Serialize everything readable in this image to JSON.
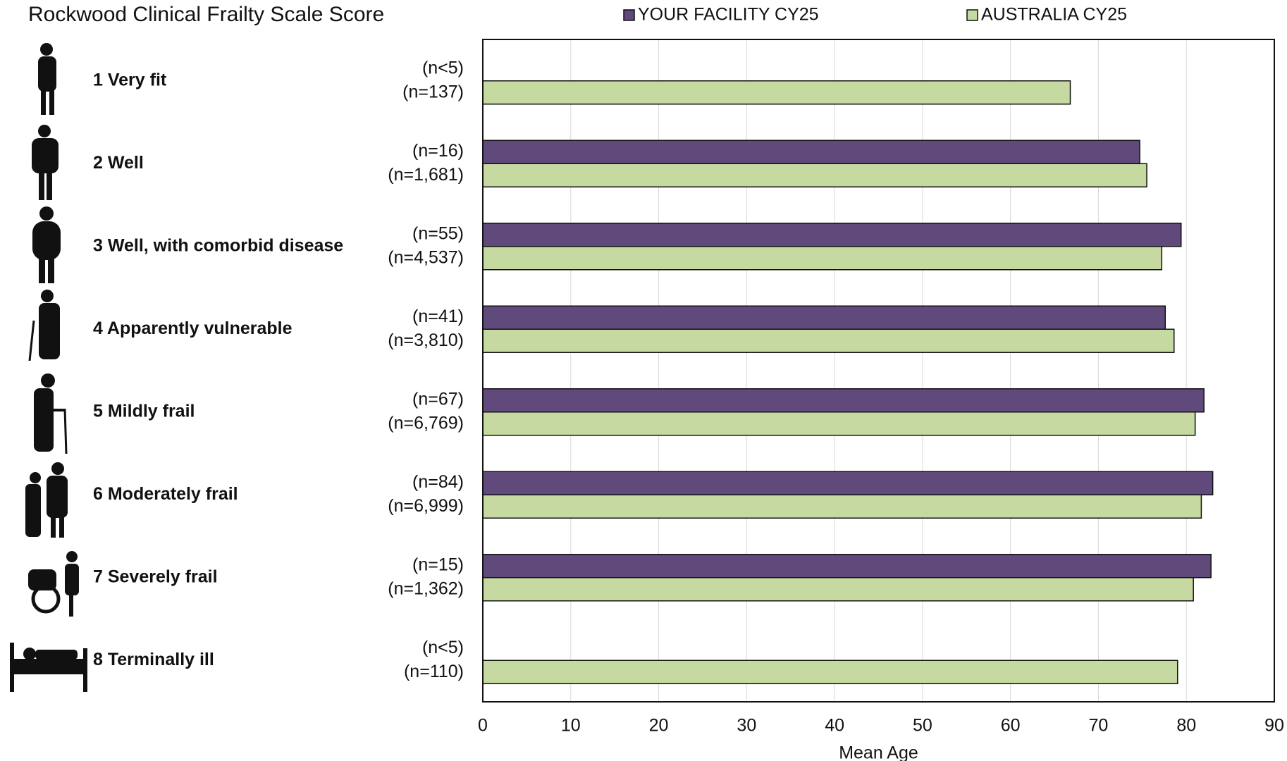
{
  "chart_data": {
    "type": "barh",
    "title": "Rockwood Clinical Frailty Scale Score",
    "categories": [
      "1 Very fit",
      "2 Well",
      "3 Well, with comorbid disease",
      "4 Apparently vulnerable",
      "5 Mildly frail",
      "6 Moderately frail",
      "7 Severely frail",
      "8 Terminally ill"
    ],
    "series": [
      {
        "name": "YOUR FACILITY CY25",
        "color": "#5f4a7b",
        "values": [
          null,
          74.7,
          79.4,
          77.6,
          82.0,
          83.0,
          82.8,
          null
        ],
        "n_labels": [
          "(n<5)",
          "(n=16)",
          "(n=55)",
          "(n=41)",
          "(n=67)",
          "(n=84)",
          "(n=15)",
          "(n<5)"
        ]
      },
      {
        "name": "AUSTRALIA CY25",
        "color": "#c5d9a0",
        "values": [
          66.8,
          75.5,
          77.2,
          78.6,
          81.0,
          81.7,
          80.8,
          79.0
        ],
        "n_labels": [
          "(n=137)",
          "(n=1,681)",
          "(n=4,537)",
          "(n=3,810)",
          "(n=6,769)",
          "(n=6,999)",
          "(n=1,362)",
          "(n=110)"
        ]
      }
    ],
    "xlabel": "Mean Age",
    "xlim": [
      0,
      90
    ],
    "xticks": [
      0,
      10,
      20,
      30,
      40,
      50,
      60,
      70,
      80,
      90
    ],
    "grid": true,
    "legend": "top"
  }
}
